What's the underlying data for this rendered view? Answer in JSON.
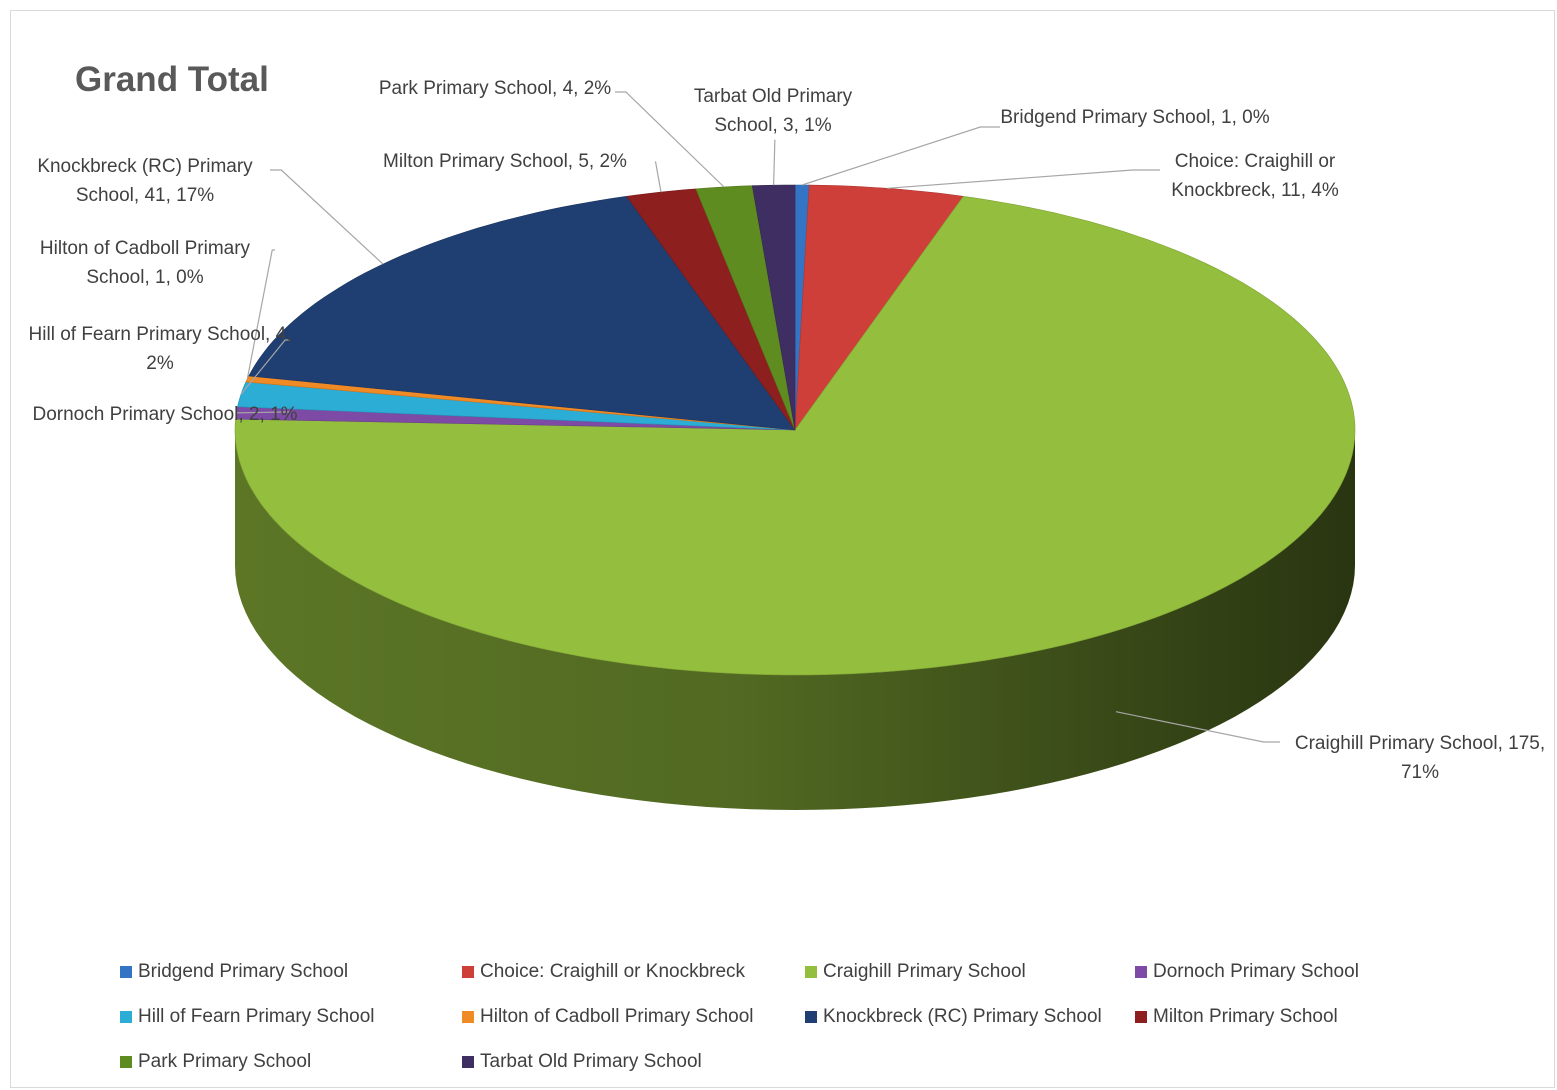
{
  "chart_data": {
    "type": "pie",
    "title": "Grand Total",
    "categories": [
      "Bridgend Primary School",
      "Choice: Craighill or Knockbreck",
      "Craighill Primary School",
      "Dornoch Primary School",
      "Hill of Fearn Primary School",
      "Hilton of Cadboll Primary School",
      "Knockbreck (RC) Primary School",
      "Milton Primary School",
      "Park Primary School",
      "Tarbat Old Primary School"
    ],
    "values": [
      1,
      11,
      175,
      2,
      4,
      1,
      41,
      5,
      4,
      3
    ],
    "value_labels": [
      "Bridgend Primary School, 1, 0%",
      "Choice: Craighill or Knockbreck, 11, 4%",
      "Craighill Primary School, 175, 71%",
      "Dornoch Primary School, 2, 1%",
      "Hill of Fearn Primary School, 4, 2%",
      "Hilton of Cadboll Primary School, 1, 0%",
      "Knockbreck (RC) Primary School, 41, 17%",
      "Milton Primary School, 5, 2%",
      "Park Primary School, 4, 2%",
      "Tarbat Old Primary School, 3, 1%"
    ],
    "colors": [
      "#3474c4",
      "#cf3f3a",
      "#94be3d",
      "#7d4ba5",
      "#2badd6",
      "#ef8a25",
      "#1f3e72",
      "#8d1f1f",
      "#5f8c20",
      "#3f2e62"
    ],
    "legend": "bottom"
  }
}
